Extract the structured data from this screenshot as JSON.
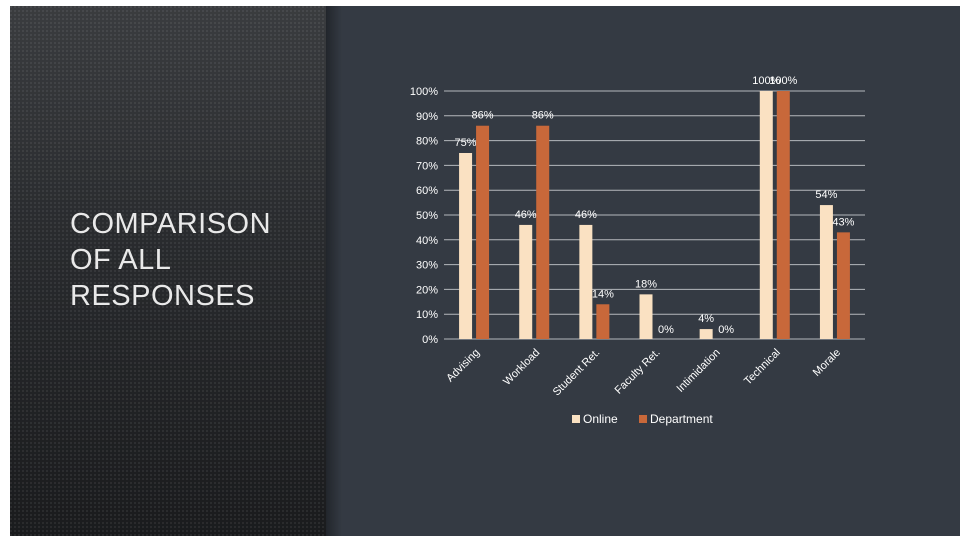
{
  "slide": {
    "title": "COMPARISON\nOF ALL\nRESPONSES"
  },
  "colors": {
    "background": "#343a43",
    "online": "#fae1c2",
    "department": "#c8683a",
    "text": "#ffffff",
    "gridline": "#b5b8bc"
  },
  "chart_data": {
    "type": "bar",
    "categories": [
      "Advising",
      "Workload",
      "Student Ret.",
      "Faculty Ret.",
      "Intimidation",
      "Technical",
      "Morale"
    ],
    "series": [
      {
        "name": "Online",
        "values": [
          75,
          46,
          46,
          18,
          4,
          100,
          54
        ],
        "labels": [
          "75%",
          "46%",
          "46%",
          "18%",
          "4%",
          "100%",
          "54%"
        ]
      },
      {
        "name": "Department",
        "values": [
          86,
          86,
          14,
          0,
          0,
          100,
          43
        ],
        "labels": [
          "86%",
          "86%",
          "14%",
          "0%",
          "0%",
          "100%",
          "43%"
        ]
      }
    ],
    "y_ticks": [
      "0%",
      "10%",
      "20%",
      "30%",
      "40%",
      "50%",
      "60%",
      "70%",
      "80%",
      "90%",
      "100%"
    ],
    "ylim": [
      0,
      100
    ],
    "grid": true,
    "legend": "bottom"
  }
}
